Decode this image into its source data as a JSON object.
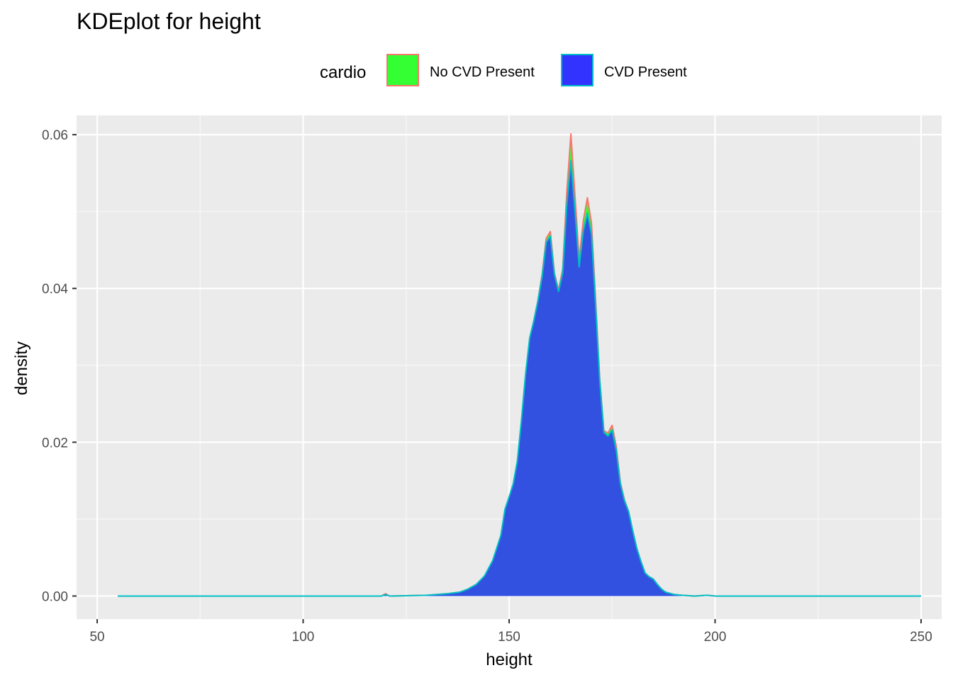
{
  "chart_data": {
    "type": "area",
    "title": "KDEplot for height",
    "xlabel": "height",
    "ylabel": "density",
    "xlim": [
      45,
      255
    ],
    "ylim": [
      -0.003,
      0.0625
    ],
    "x_ticks": [
      50,
      100,
      150,
      200,
      250
    ],
    "x_tick_labels": [
      "50",
      "100",
      "150",
      "200",
      "250"
    ],
    "y_ticks": [
      0.0,
      0.02,
      0.04,
      0.06
    ],
    "y_tick_labels": [
      "0.00",
      "0.02",
      "0.04",
      "0.06"
    ],
    "grid": true,
    "legend": {
      "title": "cardio",
      "position": "top",
      "entries": [
        {
          "label": "No CVD Present",
          "fill": "#33ff33",
          "outline": "#f8766d"
        },
        {
          "label": "CVD Present",
          "fill": "#3333ff",
          "outline": "#00bfc4"
        }
      ]
    },
    "series": [
      {
        "name": "No CVD Present",
        "fill": "#33ff33",
        "outline": "#f8766d",
        "x": [
          55,
          119,
          120,
          121,
          130,
          135,
          138,
          140,
          142,
          144,
          146,
          148,
          149,
          150,
          151,
          152,
          153,
          154,
          155,
          156,
          157,
          158,
          159,
          160,
          161,
          162,
          163,
          164,
          165,
          166,
          167,
          168,
          169,
          170,
          171,
          172,
          173,
          174,
          175,
          176,
          177,
          178,
          179,
          180,
          181,
          182,
          183,
          184,
          185,
          186,
          187,
          188,
          190,
          192,
          195,
          198,
          200,
          250
        ],
        "y": [
          0.0,
          0.0,
          0.0003,
          0.0,
          0.0001,
          0.0003,
          0.0005,
          0.0009,
          0.0015,
          0.0025,
          0.0045,
          0.0078,
          0.0112,
          0.0128,
          0.0145,
          0.0175,
          0.0228,
          0.0288,
          0.0335,
          0.0358,
          0.0385,
          0.0418,
          0.0465,
          0.0474,
          0.042,
          0.0398,
          0.0425,
          0.0525,
          0.0601,
          0.052,
          0.0438,
          0.0488,
          0.0518,
          0.0485,
          0.0385,
          0.0282,
          0.0215,
          0.0212,
          0.0222,
          0.0195,
          0.0148,
          0.0125,
          0.011,
          0.0085,
          0.0062,
          0.0045,
          0.003,
          0.0025,
          0.0022,
          0.0015,
          0.0009,
          0.0005,
          0.0002,
          0.0001,
          0.0,
          0.0001,
          0.0,
          0.0
        ]
      },
      {
        "name": "CVD Present",
        "fill": "#3333ff",
        "outline": "#00bfc4",
        "x": [
          55,
          119,
          120,
          121,
          130,
          135,
          138,
          140,
          142,
          144,
          146,
          148,
          149,
          150,
          151,
          152,
          153,
          154,
          155,
          156,
          157,
          158,
          159,
          160,
          161,
          162,
          163,
          164,
          165,
          166,
          167,
          168,
          169,
          170,
          171,
          172,
          173,
          174,
          175,
          176,
          177,
          178,
          179,
          180,
          181,
          182,
          183,
          184,
          185,
          186,
          187,
          188,
          190,
          192,
          195,
          198,
          200,
          250
        ],
        "y": [
          0.0,
          0.0,
          0.0002,
          0.0,
          0.0001,
          0.0003,
          0.0005,
          0.0009,
          0.0015,
          0.0026,
          0.0046,
          0.0079,
          0.0113,
          0.0129,
          0.0146,
          0.0176,
          0.0229,
          0.0289,
          0.0336,
          0.0358,
          0.0384,
          0.0415,
          0.046,
          0.0468,
          0.0418,
          0.0396,
          0.042,
          0.0508,
          0.0566,
          0.05,
          0.0428,
          0.0474,
          0.0498,
          0.047,
          0.0378,
          0.028,
          0.0213,
          0.0208,
          0.0216,
          0.019,
          0.0146,
          0.0124,
          0.011,
          0.0085,
          0.0062,
          0.0045,
          0.003,
          0.0025,
          0.0022,
          0.0015,
          0.0009,
          0.0005,
          0.0002,
          0.0001,
          0.0,
          0.0001,
          0.0,
          0.0
        ]
      }
    ]
  }
}
